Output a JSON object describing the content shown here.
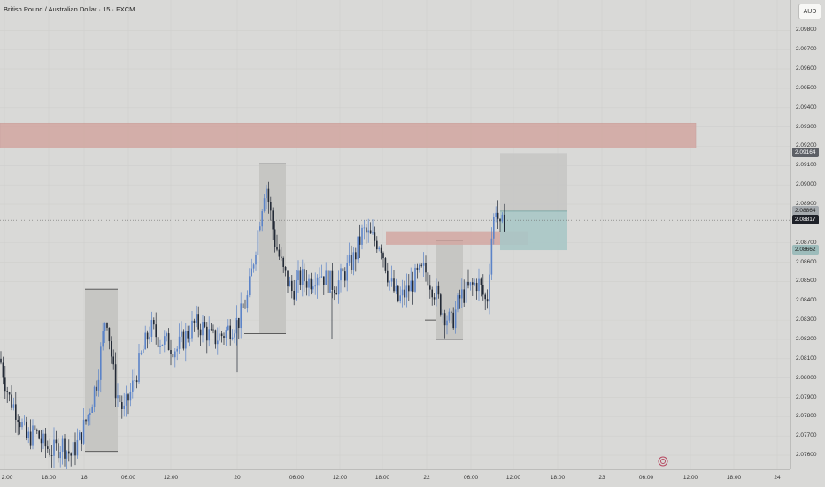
{
  "title": "British Pound / Australian Dollar · 15 · FXCM",
  "currency": "AUD",
  "price_axis": {
    "min": 2.0755,
    "max": 2.0993,
    "ticks": [
      "2.09800",
      "2.09700",
      "2.09600",
      "2.09500",
      "2.09400",
      "2.09300",
      "2.09200",
      "2.09100",
      "2.09000",
      "2.08900",
      "2.08700",
      "2.08600",
      "2.08500",
      "2.08400",
      "2.08300",
      "2.08200",
      "2.08100",
      "2.08000",
      "2.07900",
      "2.07800",
      "2.07700",
      "2.07600"
    ],
    "labels": [
      {
        "value": "2.09164",
        "bg": "#5d6066",
        "fg": "#ffffff"
      },
      {
        "value": "2.08864",
        "bg": "#a5aaae",
        "fg": "#1e1e1e"
      },
      {
        "value": "2.08817",
        "bg": "#1e2128",
        "fg": "#ffffff"
      },
      {
        "value": "2.08662",
        "bg": "#9dbcbb",
        "fg": "#1e1e1e"
      }
    ]
  },
  "time_axis": {
    "labels": [
      "2:00",
      "18:00",
      "18",
      "06:00",
      "12:00",
      "20",
      "06:00",
      "12:00",
      "18:00",
      "22",
      "06:00",
      "12:00",
      "18:00",
      "23",
      "06:00",
      "12:00",
      "18:00",
      "24"
    ]
  },
  "colors": {
    "background": "#d9d9d7",
    "candle_up": "#5b83c8",
    "candle_down": "#232a36",
    "supply_zone": "#d2a7a2",
    "target_box": "#c7c7c5",
    "stop_box": "#a8c7c6"
  },
  "chart_data": {
    "type": "candlestick",
    "symbol": "GBPAUD",
    "timeframe": "15",
    "ylim": [
      2.0755,
      2.0993
    ],
    "x_ticks": [
      "2:00",
      "18:00",
      "18",
      "06:00",
      "12:00",
      "20",
      "06:00",
      "12:00",
      "18:00",
      "22",
      "06:00",
      "12:00",
      "18:00",
      "23",
      "06:00",
      "12:00",
      "18:00",
      "24"
    ],
    "close_path": [
      [
        0,
        2.081
      ],
      [
        10,
        2.079
      ],
      [
        20,
        2.0782
      ],
      [
        30,
        2.0768
      ],
      [
        40,
        2.0772
      ],
      [
        50,
        2.0765
      ],
      [
        60,
        2.0762
      ],
      [
        70,
        2.0766
      ],
      [
        80,
        2.076
      ],
      [
        90,
        2.0768
      ],
      [
        100,
        2.0782
      ],
      [
        110,
        2.08
      ],
      [
        120,
        2.0835
      ],
      [
        130,
        2.0795
      ],
      [
        140,
        2.0782
      ],
      [
        150,
        2.0796
      ],
      [
        160,
        2.0812
      ],
      [
        170,
        2.0826
      ],
      [
        180,
        2.082
      ],
      [
        190,
        2.0818
      ],
      [
        200,
        2.0815
      ],
      [
        210,
        2.0822
      ],
      [
        220,
        2.0828
      ],
      [
        230,
        2.0826
      ],
      [
        240,
        2.082
      ],
      [
        250,
        2.0822
      ],
      [
        260,
        2.0826
      ],
      [
        270,
        2.083
      ],
      [
        280,
        2.0842
      ],
      [
        290,
        2.0872
      ],
      [
        300,
        2.0902
      ],
      [
        310,
        2.0872
      ],
      [
        320,
        2.0855
      ],
      [
        330,
        2.0845
      ],
      [
        340,
        2.0852
      ],
      [
        350,
        2.085
      ],
      [
        360,
        2.0856
      ],
      [
        370,
        2.085
      ],
      [
        380,
        2.0848
      ],
      [
        390,
        2.0855
      ],
      [
        400,
        2.0862
      ],
      [
        410,
        2.0876
      ],
      [
        420,
        2.0872
      ],
      [
        430,
        2.087
      ],
      [
        440,
        2.085
      ],
      [
        450,
        2.084
      ],
      [
        460,
        2.0845
      ],
      [
        470,
        2.0852
      ],
      [
        480,
        2.0856
      ],
      [
        490,
        2.0846
      ],
      [
        500,
        2.0835
      ],
      [
        510,
        2.0828
      ],
      [
        520,
        2.0842
      ],
      [
        530,
        2.0846
      ],
      [
        540,
        2.085
      ],
      [
        550,
        2.0838
      ],
      [
        555,
        2.0872
      ],
      [
        560,
        2.089
      ],
      [
        565,
        2.0876
      ],
      [
        570,
        2.0882
      ]
    ],
    "supply_zone": {
      "from": 2.0932,
      "to": 2.0919
    },
    "small_zone": {
      "from": 2.0876,
      "to": 2.0869
    },
    "long_position": {
      "entry": 2.08864,
      "target": 2.09164,
      "stop": 2.08662
    },
    "last_price": 2.08817,
    "range_boxes": [
      {
        "high": 2.0846,
        "low": 2.0762
      },
      {
        "high": 2.0911,
        "low": 2.0823
      },
      {
        "high": 2.0871,
        "low": 2.082
      }
    ]
  }
}
